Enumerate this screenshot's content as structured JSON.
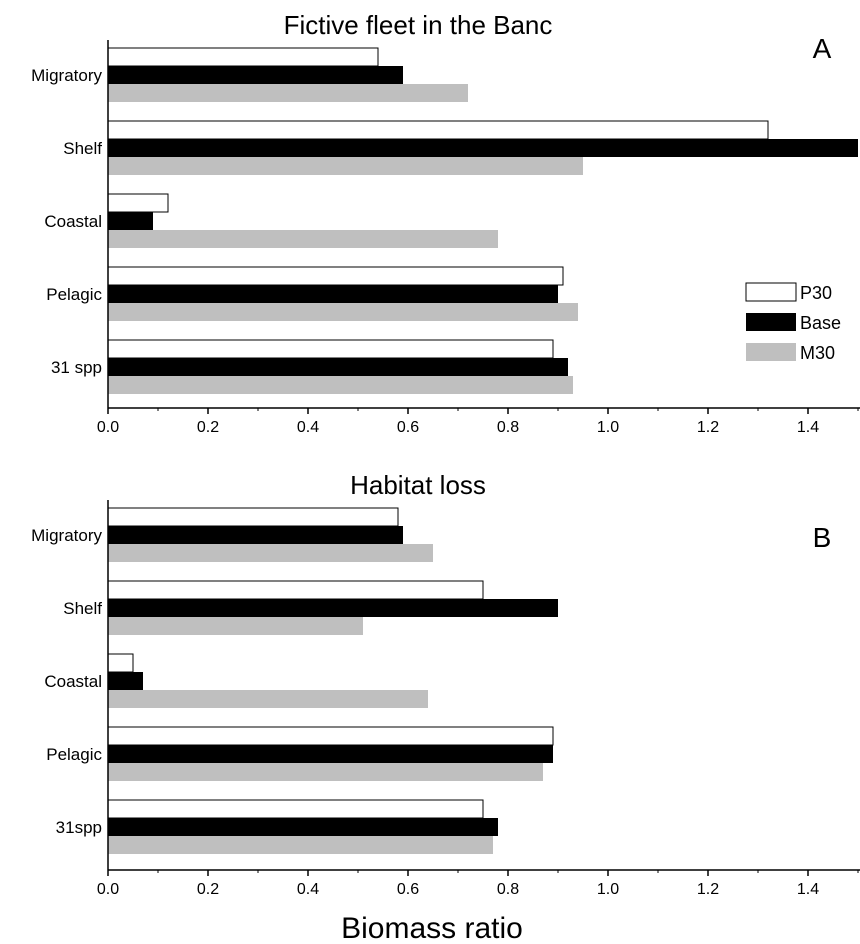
{
  "chart_data": [
    {
      "type": "bar",
      "orientation": "horizontal",
      "title": "Fictive fleet in the Banc",
      "panel_label": "A",
      "categories": [
        "Migratory",
        "Shelf",
        "Coastal",
        "Pelagic",
        "31 spp"
      ],
      "series": [
        {
          "name": "P30",
          "values": [
            0.54,
            1.32,
            0.12,
            0.91,
            0.89
          ]
        },
        {
          "name": "Base",
          "values": [
            0.59,
            1.5,
            0.09,
            0.9,
            0.92
          ]
        },
        {
          "name": "M30",
          "values": [
            0.72,
            0.95,
            0.78,
            0.94,
            0.93
          ]
        }
      ],
      "xlim": [
        0,
        1.5
      ],
      "xticks": [
        "0.0",
        "0.2",
        "0.4",
        "0.6",
        "0.8",
        "1.0",
        "1.2",
        "1.4"
      ],
      "legend": "right",
      "grid": false
    },
    {
      "type": "bar",
      "orientation": "horizontal",
      "title": "Habitat loss",
      "panel_label": "B",
      "categories": [
        "Migratory",
        "Shelf",
        "Coastal",
        "Pelagic",
        "31spp"
      ],
      "series": [
        {
          "name": "P30",
          "values": [
            0.58,
            0.75,
            0.05,
            0.89,
            0.75
          ]
        },
        {
          "name": "Base",
          "values": [
            0.59,
            0.9,
            0.07,
            0.89,
            0.78
          ]
        },
        {
          "name": "M30",
          "values": [
            0.65,
            0.51,
            0.64,
            0.87,
            0.77
          ]
        }
      ],
      "xlim": [
        0,
        1.5
      ],
      "xticks": [
        "0.0",
        "0.2",
        "0.4",
        "0.6",
        "0.8",
        "1.0",
        "1.2",
        "1.4"
      ],
      "xlabel": "Biomass ratio",
      "grid": false
    }
  ],
  "colors": {
    "P30": "#ffffff",
    "Base": "#000000",
    "M30": "#bfbfbf"
  }
}
